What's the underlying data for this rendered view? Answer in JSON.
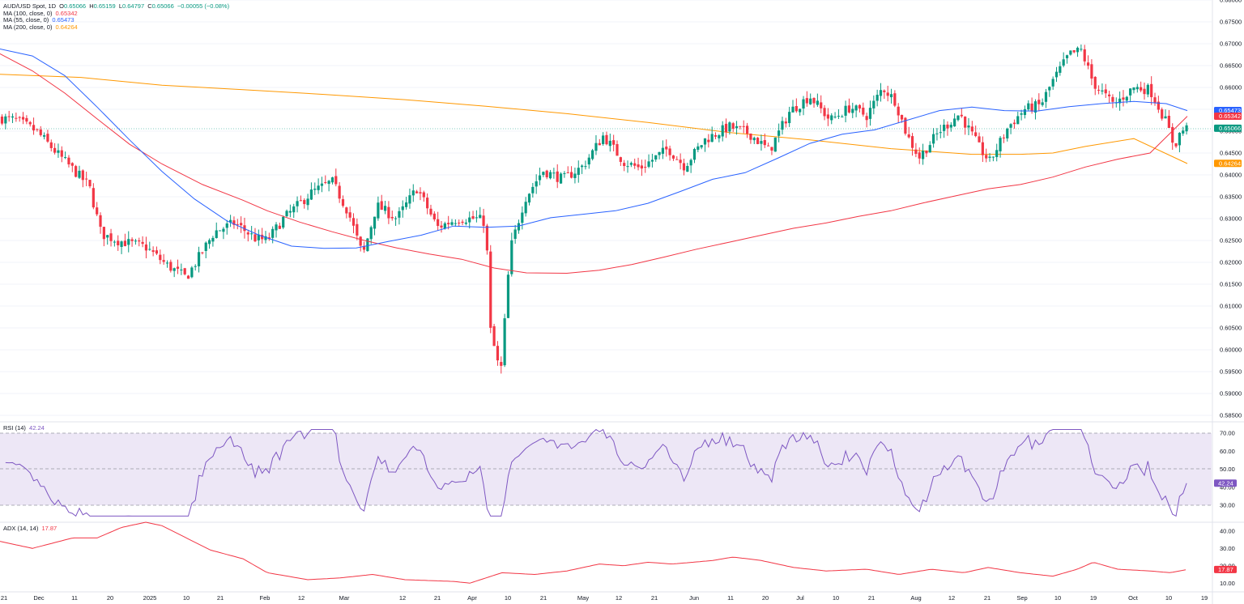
{
  "colors": {
    "up": "#089981",
    "down": "#f23645",
    "ma100": "#f23645",
    "ma55": "#2962ff",
    "ma200": "#ff9800",
    "rsi": "#7e57c2",
    "rsi_band": "#ede7f6",
    "adx": "#f23645",
    "grid": "#f0f3fa",
    "divider": "#e0e3eb"
  },
  "legend": {
    "symbol": "AUD/USD Spot, 1D",
    "o_label": "O",
    "o_value": "0.65066",
    "h_label": "H",
    "h_value": "0.65159",
    "l_label": "L",
    "l_value": "0.64797",
    "c_label": "C",
    "c_value": "0.65066",
    "change": "−0.00055 (−0.08%)",
    "ma100_label": "MA (100, close, 0)",
    "ma100_value": "0.65342",
    "ma55_label": "MA (55, close, 0)",
    "ma55_value": "0.65473",
    "ma200_label": "MA (200, close, 0)",
    "ma200_value": "0.64264",
    "rsi_label": "RSI (14)",
    "rsi_value": "42.24",
    "adx_label": "ADX (14, 14)",
    "adx_value": "17.87"
  },
  "price_axis_labels": [
    "0.68000",
    "0.67500",
    "0.67000",
    "0.66500",
    "0.66000",
    "0.65500",
    "0.65000",
    "0.64500",
    "0.64000",
    "0.63500",
    "0.63000",
    "0.62500",
    "0.62000",
    "0.61500",
    "0.61000",
    "0.60500",
    "0.60000",
    "0.59500",
    "0.59000",
    "0.58500"
  ],
  "price_tags": [
    {
      "name": "ma55",
      "value": "0.65473"
    },
    {
      "name": "ma100",
      "value": "0.65342"
    },
    {
      "name": "close",
      "value": "0.65066"
    },
    {
      "name": "ma200",
      "value": "0.64264"
    }
  ],
  "rsi_axis_labels": [
    "70.00",
    "60.00",
    "50.00",
    "40.00",
    "30.00"
  ],
  "adx_axis_labels": [
    "40.00",
    "30.00",
    "20.00",
    "10.00"
  ],
  "time_axis_labels": [
    "21",
    "Dec",
    "11",
    "20",
    "2025",
    "10",
    "21",
    "Feb",
    "12",
    "Mar",
    "12",
    "21",
    "Apr",
    "10",
    "21",
    "May",
    "12",
    "21",
    "Jun",
    "11",
    "20",
    "Jul",
    "10",
    "21",
    "Aug",
    "12",
    "21",
    "Sep",
    "10",
    "19",
    "Oct",
    "10",
    "19"
  ],
  "chart_data": [
    {
      "type": "candlestick",
      "title": "AUD/USD Spot, 1D",
      "ylim": [
        0.5825,
        0.68
      ],
      "moving_averages": [
        {
          "name": "MA (100, close, 0)",
          "last": 0.65342,
          "points": [
            [
              0,
              0.6677
            ],
            [
              40,
              0.6638
            ],
            [
              80,
              0.6587
            ],
            [
              120,
              0.6528
            ],
            [
              160,
              0.647
            ],
            [
              200,
              0.6425
            ],
            [
              250,
              0.6378
            ],
            [
              300,
              0.6342
            ],
            [
              330,
              0.6318
            ],
            [
              370,
              0.6292
            ],
            [
              410,
              0.627
            ],
            [
              450,
              0.625
            ],
            [
              490,
              0.6233
            ],
            [
              530,
              0.6219
            ],
            [
              570,
              0.6207
            ],
            [
              610,
              0.6187
            ],
            [
              650,
              0.6176
            ],
            [
              700,
              0.6175
            ],
            [
              740,
              0.6182
            ],
            [
              780,
              0.6195
            ],
            [
              820,
              0.6212
            ],
            [
              860,
              0.623
            ],
            [
              900,
              0.6246
            ],
            [
              940,
              0.6262
            ],
            [
              980,
              0.6278
            ],
            [
              1020,
              0.629
            ],
            [
              1060,
              0.6305
            ],
            [
              1100,
              0.6318
            ],
            [
              1140,
              0.6336
            ],
            [
              1180,
              0.6352
            ],
            [
              1220,
              0.6368
            ],
            [
              1260,
              0.6378
            ],
            [
              1300,
              0.6395
            ],
            [
              1340,
              0.6418
            ],
            [
              1380,
              0.6436
            ],
            [
              1420,
              0.645
            ],
            [
              1466,
              0.6534
            ]
          ]
        },
        {
          "name": "MA (55, close, 0)",
          "last": 0.65473,
          "points": [
            [
              0,
              0.6688
            ],
            [
              40,
              0.6672
            ],
            [
              80,
              0.6627
            ],
            [
              120,
              0.6555
            ],
            [
              160,
              0.648
            ],
            [
              200,
              0.6408
            ],
            [
              240,
              0.6345
            ],
            [
              280,
              0.6295
            ],
            [
              320,
              0.6262
            ],
            [
              360,
              0.6237
            ],
            [
              400,
              0.6232
            ],
            [
              440,
              0.6233
            ],
            [
              480,
              0.6248
            ],
            [
              520,
              0.6262
            ],
            [
              560,
              0.6283
            ],
            [
              600,
              0.628
            ],
            [
              640,
              0.6283
            ],
            [
              680,
              0.6302
            ],
            [
              720,
              0.631
            ],
            [
              760,
              0.6318
            ],
            [
              800,
              0.6335
            ],
            [
              840,
              0.6362
            ],
            [
              880,
              0.639
            ],
            [
              920,
              0.6405
            ],
            [
              960,
              0.6438
            ],
            [
              1000,
              0.6472
            ],
            [
              1040,
              0.6493
            ],
            [
              1080,
              0.6503
            ],
            [
              1120,
              0.6525
            ],
            [
              1160,
              0.6547
            ],
            [
              1200,
              0.6555
            ],
            [
              1240,
              0.6547
            ],
            [
              1280,
              0.6546
            ],
            [
              1320,
              0.6556
            ],
            [
              1360,
              0.6563
            ],
            [
              1400,
              0.6568
            ],
            [
              1440,
              0.6563
            ],
            [
              1466,
              0.6547
            ]
          ]
        },
        {
          "name": "MA (200, close, 0)",
          "last": 0.64264,
          "points": [
            [
              0,
              0.663
            ],
            [
              100,
              0.6623
            ],
            [
              200,
              0.6605
            ],
            [
              300,
              0.6595
            ],
            [
              400,
              0.6584
            ],
            [
              500,
              0.6572
            ],
            [
              600,
              0.6557
            ],
            [
              700,
              0.654
            ],
            [
              800,
              0.652
            ],
            [
              900,
              0.6497
            ],
            [
              1000,
              0.648
            ],
            [
              1100,
              0.646
            ],
            [
              1200,
              0.6447
            ],
            [
              1260,
              0.6447
            ],
            [
              1300,
              0.645
            ],
            [
              1340,
              0.6465
            ],
            [
              1400,
              0.6483
            ],
            [
              1466,
              0.6426
            ]
          ]
        }
      ],
      "last_close": 0.65066
    },
    {
      "type": "line",
      "title": "RSI (14)",
      "ylim": [
        20,
        80
      ],
      "levels": [
        70,
        50,
        30
      ],
      "last": 42.24
    },
    {
      "type": "line",
      "title": "ADX (14, 14)",
      "ylim": [
        5,
        45
      ],
      "last": 17.87
    }
  ]
}
